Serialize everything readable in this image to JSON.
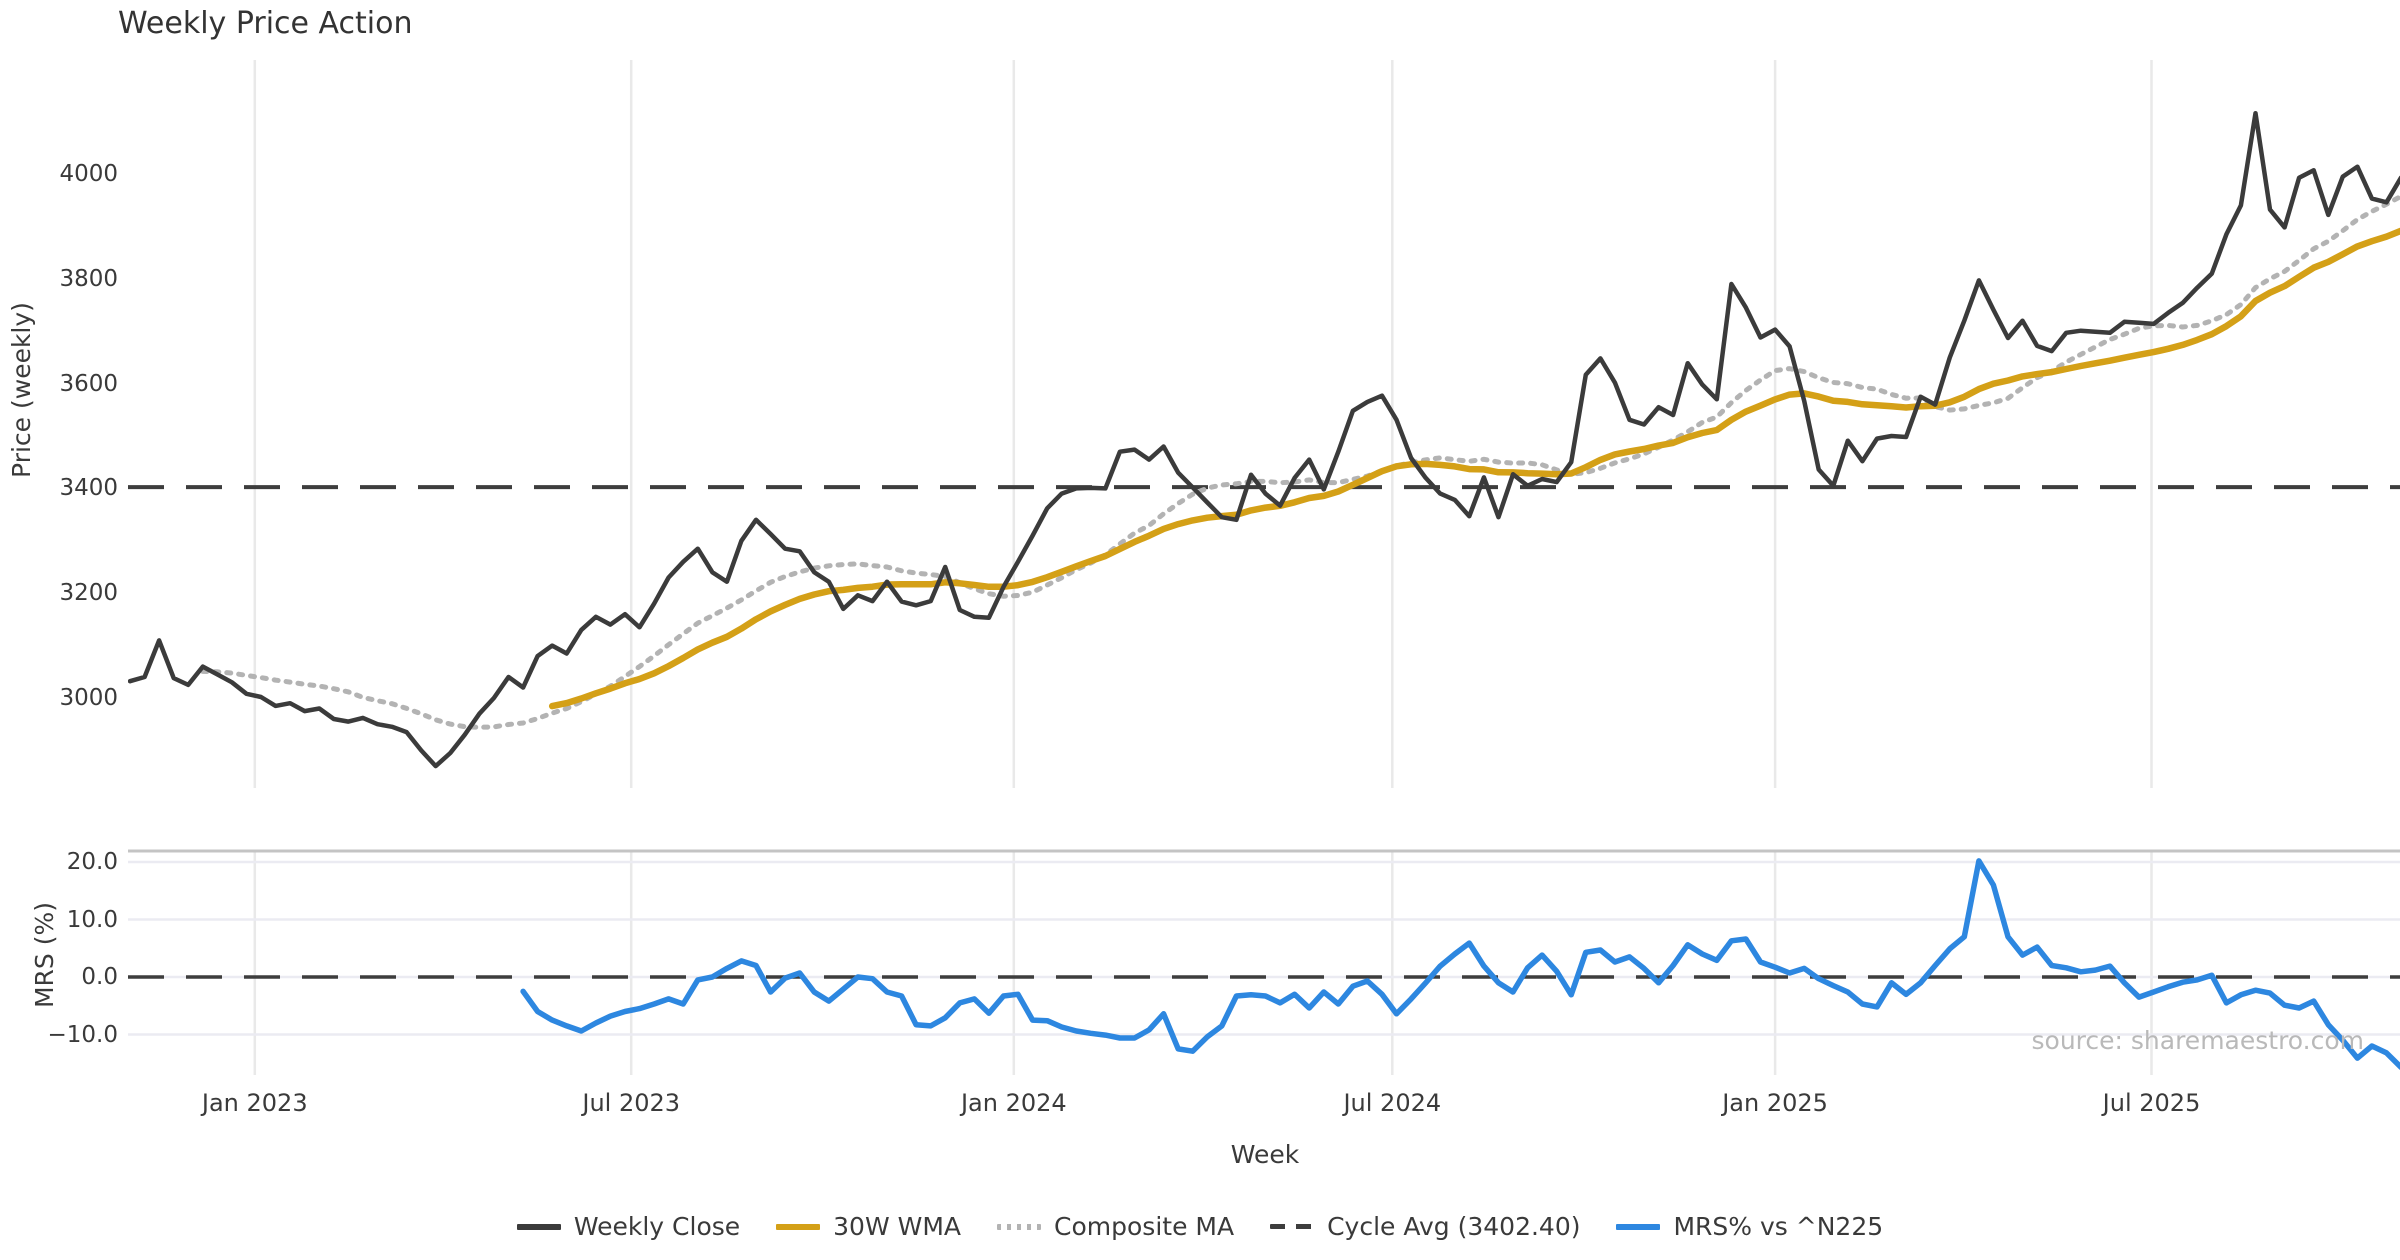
{
  "title": "Weekly Price Action",
  "source_note": "source: sharemaestro.com",
  "price_axis": {
    "label": "Price (weekly)",
    "ticks": [
      {
        "label": "3000",
        "value": 3000
      },
      {
        "label": "3200",
        "value": 3200
      },
      {
        "label": "3400",
        "value": 3400
      },
      {
        "label": "3600",
        "value": 3600
      },
      {
        "label": "3800",
        "value": 3800
      },
      {
        "label": "4000",
        "value": 4000
      }
    ]
  },
  "mrs_axis": {
    "label": "MRS (%)",
    "ticks": [
      {
        "label": "−10.0",
        "value": -10
      },
      {
        "label": "0.0",
        "value": 0
      },
      {
        "label": "10.0",
        "value": 10
      },
      {
        "label": "20.0",
        "value": 20
      }
    ]
  },
  "x_axis": {
    "label": "Week",
    "ticks": [
      {
        "label": "Jan 2023",
        "week": 8.57
      },
      {
        "label": "Jul 2023",
        "week": 34.43
      },
      {
        "label": "Jan 2024",
        "week": 60.71
      },
      {
        "label": "Jul 2024",
        "week": 86.71
      },
      {
        "label": "Jan 2025",
        "week": 113.0
      },
      {
        "label": "Jul 2025",
        "week": 138.86
      }
    ]
  },
  "legend": [
    {
      "label": "Weekly Close",
      "style": "solid",
      "color": "#3b3b3b"
    },
    {
      "label": "30W WMA",
      "style": "solid",
      "color": "#d4a017"
    },
    {
      "label": "Composite MA",
      "style": "dotted",
      "color": "#b3b3b3"
    },
    {
      "label": "Cycle Avg (3402.40)",
      "style": "dashed",
      "color": "#3d3d3d"
    },
    {
      "label": "MRS% vs ^N225",
      "style": "solid",
      "color": "#2d87e0"
    }
  ],
  "colors": {
    "close": "#3b3b3b",
    "wma": "#d4a017",
    "composite": "#b3b3b3",
    "cycle": "#3d3d3d",
    "mrs": "#2d87e0",
    "grid": "#e9e9e9",
    "grid_h": "#ebebf2",
    "spine": "#c4c4c4"
  },
  "chart_data": {
    "type": "line",
    "x_unit": "week",
    "title": "Weekly Price Action",
    "xlabel": "Week",
    "panels": [
      {
        "name": "price",
        "ylabel": "Price (weekly)",
        "ylim": [
          2853,
          4227
        ],
        "grid": "vertical-only"
      },
      {
        "name": "mrs",
        "ylabel": "MRS (%)",
        "ylim": [
          -17,
          22.1
        ],
        "grid": "both"
      }
    ],
    "xlim_weeks": [
      0,
      155.93
    ],
    "cycle_avg": 3402.4,
    "wma_window": 30,
    "composite_window": 14,
    "composite_min_periods": 6,
    "mrs_start_week": 27,
    "series": [
      {
        "name": "Weekly Close",
        "panel": "price",
        "values": [
          3032,
          3040,
          3110,
          3038,
          3025,
          3060,
          3045,
          3030,
          3008,
          3002,
          2985,
          2990,
          2975,
          2980,
          2960,
          2955,
          2962,
          2950,
          2945,
          2935,
          2900,
          2870,
          2895,
          2930,
          2970,
          3000,
          3040,
          3020,
          3080,
          3100,
          3085,
          3130,
          3155,
          3140,
          3160,
          3135,
          3180,
          3230,
          3260,
          3285,
          3240,
          3222,
          3300,
          3340,
          3313,
          3285,
          3280,
          3240,
          3222,
          3170,
          3196,
          3185,
          3222,
          3184,
          3177,
          3185,
          3250,
          3168,
          3155,
          3153,
          3212,
          3260,
          3310,
          3362,
          3390,
          3400,
          3401,
          3400,
          3470,
          3474,
          3455,
          3480,
          3430,
          3402,
          3373,
          3345,
          3340,
          3426,
          3390,
          3367,
          3420,
          3455,
          3398,
          3470,
          3548,
          3565,
          3577,
          3531,
          3458,
          3420,
          3390,
          3378,
          3347,
          3421,
          3345,
          3427,
          3405,
          3418,
          3412,
          3450,
          3617,
          3648,
          3602,
          3531,
          3522,
          3555,
          3540,
          3639,
          3598,
          3570,
          3790,
          3745,
          3688,
          3703,
          3671,
          3567,
          3436,
          3405,
          3491,
          3452,
          3495,
          3500,
          3498,
          3575,
          3560,
          3650,
          3720,
          3797,
          3741,
          3687,
          3720,
          3672,
          3662,
          3697,
          3701,
          3699,
          3697,
          3718,
          3716,
          3714,
          3735,
          3754,
          3783,
          3810,
          3885,
          3940,
          4116,
          3932,
          3898,
          3993,
          4007,
          3922,
          3995,
          4014,
          3953,
          3946,
          3993
        ]
      },
      {
        "name": "MRS% vs ^N225",
        "panel": "mrs",
        "start_week": 27,
        "values": [
          -2.5,
          -6.0,
          -7.5,
          -8.5,
          -9.4,
          -8.0,
          -6.8,
          -6.0,
          -5.5,
          -4.7,
          -3.8,
          -4.7,
          -0.5,
          0.0,
          1.5,
          2.8,
          2.0,
          -2.6,
          -0.2,
          0.7,
          -2.6,
          -4.2,
          -2.1,
          0.0,
          -0.3,
          -2.6,
          -3.3,
          -8.3,
          -8.5,
          -7.1,
          -4.5,
          -3.8,
          -6.3,
          -3.3,
          -3.0,
          -7.5,
          -7.6,
          -8.7,
          -9.4,
          -9.8,
          -10.1,
          -10.6,
          -10.6,
          -9.2,
          -6.4,
          -12.5,
          -12.9,
          -10.4,
          -8.5,
          -3.3,
          -3.1,
          -3.3,
          -4.5,
          -3.0,
          -5.4,
          -2.6,
          -4.7,
          -1.6,
          -0.7,
          -3.0,
          -6.4,
          -3.8,
          -1.0,
          1.9,
          4.0,
          5.9,
          1.9,
          -1.0,
          -2.6,
          1.6,
          3.8,
          1.0,
          -3.1,
          4.3,
          4.7,
          2.6,
          3.5,
          1.5,
          -1.0,
          2.0,
          5.6,
          4.0,
          2.9,
          6.3,
          6.6,
          2.6,
          1.7,
          0.7,
          1.5,
          -0.3,
          -1.5,
          -2.6,
          -4.7,
          -5.2,
          -1.0,
          -3.0,
          -1.0,
          2.0,
          4.9,
          7.0,
          20.2,
          16.0,
          7.0,
          3.8,
          5.2,
          2.0,
          1.6,
          0.9,
          1.2,
          1.9,
          -1.0,
          -3.5,
          -2.6,
          -1.7,
          -0.9,
          -0.5,
          0.3,
          -4.5,
          -3.1,
          -2.3,
          -2.8,
          -4.9,
          -5.4,
          -4.2,
          -8.3,
          -11.0,
          -14.1,
          -12.0,
          -13.2,
          -15.7
        ]
      }
    ],
    "derived_series": [
      {
        "name": "30W WMA",
        "panel": "price",
        "formula": "linear-weighted MA of Weekly Close, window 30"
      },
      {
        "name": "Composite MA",
        "panel": "price",
        "formula": "SMA of Weekly Close, window 14, min periods 6"
      }
    ]
  }
}
